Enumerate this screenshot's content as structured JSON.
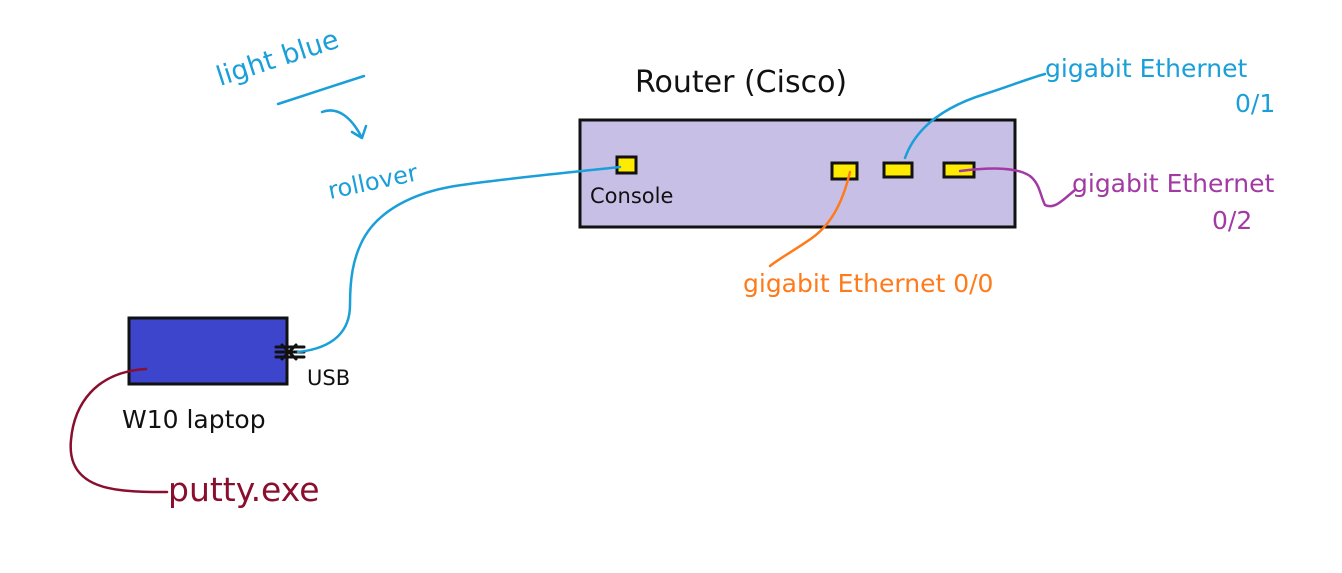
{
  "colors": {
    "background": "#ffffff",
    "router_fill": "#c8bfe6",
    "laptop_fill": "#3c45cc",
    "port_fill": "#ffeb00",
    "outline": "#111111",
    "rollover_blue": "#1a9fd8",
    "orange": "#ff7a1a",
    "purple": "#a23aa3",
    "maroon": "#8a0f2f"
  },
  "labels": {
    "router_title": "Router (Cisco)",
    "console": "Console",
    "ge01_line1": "gigabit Ethernet",
    "ge01_line2": "0/1",
    "ge02_line1": "gigabit Ethernet",
    "ge02_line2": "0/2",
    "ge00": "gigabit Ethernet 0/0",
    "cable_color": "light blue",
    "cable_type": "rollover",
    "usb": "USB",
    "laptop": "W10 laptop",
    "software": "putty.exe"
  },
  "icons": {
    "port": "rj45-port-icon",
    "usb": "usb-connector-icon",
    "arrow": "curved-arrow-icon"
  }
}
